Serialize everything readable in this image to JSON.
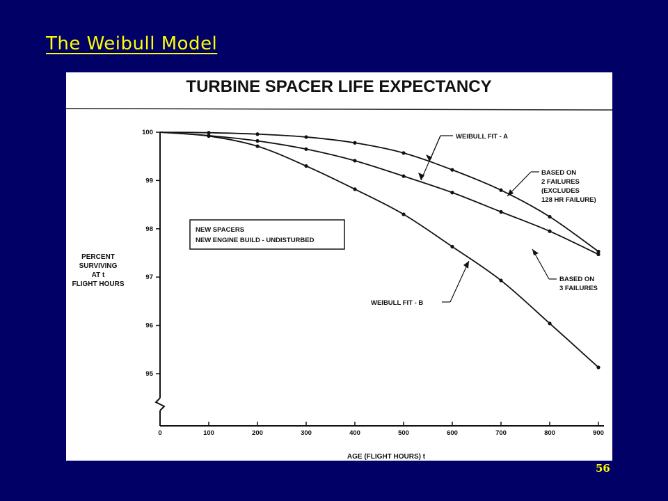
{
  "slide": {
    "title": "The Weibull Model",
    "page_number": "56"
  },
  "chart_data": {
    "type": "line",
    "title": "TURBINE SPACER LIFE EXPECTANCY",
    "xlabel": "AGE (FLIGHT HOURS) t",
    "ylabel": [
      "PERCENT",
      "SURVIVING",
      "AT t",
      "FLIGHT HOURS"
    ],
    "xlim": [
      0,
      900
    ],
    "ylim": [
      94.2,
      100
    ],
    "x_ticks": [
      0,
      100,
      200,
      300,
      400,
      500,
      600,
      700,
      800,
      900
    ],
    "y_ticks": [
      95,
      96,
      97,
      98,
      99,
      100
    ],
    "grid": false,
    "series": [
      {
        "name": "BASED ON 2 FAILURES (EXCLUDES 128 HR FAILURE)",
        "x": [
          0,
          100,
          200,
          300,
          400,
          500,
          600,
          700,
          800,
          900
        ],
        "y": [
          100,
          99.99,
          99.96,
          99.9,
          99.78,
          99.57,
          99.22,
          98.8,
          98.25,
          97.53
        ]
      },
      {
        "name": "BASED ON 3 FAILURES",
        "x": [
          0,
          100,
          200,
          300,
          400,
          500,
          600,
          700,
          800,
          900
        ],
        "y": [
          100,
          99.93,
          99.82,
          99.65,
          99.41,
          99.09,
          98.75,
          98.35,
          97.95,
          97.47
        ]
      },
      {
        "name": "WEIBULL FIT - B",
        "x": [
          0,
          100,
          200,
          300,
          400,
          500,
          600,
          700,
          800,
          900
        ],
        "y": [
          100,
          99.92,
          99.71,
          99.3,
          98.82,
          98.3,
          97.63,
          96.93,
          96.04,
          95.13
        ]
      }
    ],
    "annotations": {
      "fit_a": "WEIBULL FIT - A",
      "based_2": [
        "BASED ON",
        "2 FAILURES",
        "(EXCLUDES",
        "128 HR FAILURE)"
      ],
      "based_3": [
        "BASED ON",
        "3 FAILURES"
      ],
      "fit_b": "WEIBULL FIT - B",
      "legend_box": [
        "NEW SPACERS",
        "NEW ENGINE BUILD - UNDISTURBED"
      ]
    }
  }
}
